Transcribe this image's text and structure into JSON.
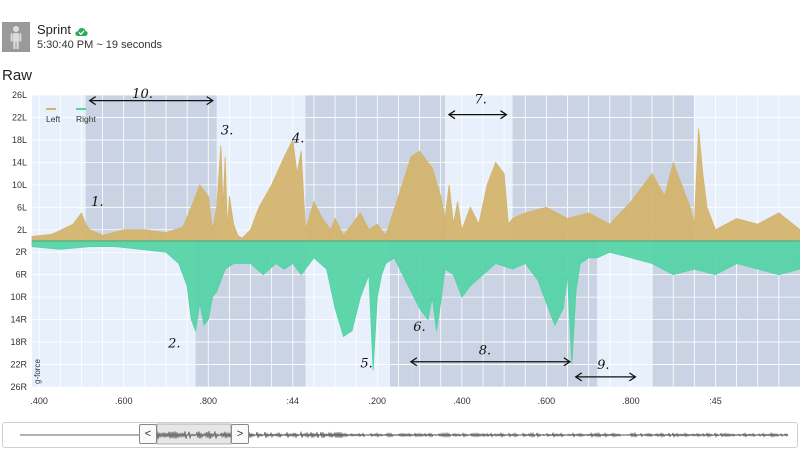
{
  "activity": {
    "title": "Sprint",
    "subtitle": "5:30:40 PM ~ 19 seconds",
    "status_icon": "cloud-check-icon",
    "status_color": "#2eaa5c",
    "avatar_icon": "person-icon"
  },
  "section_label": "Raw",
  "chart_data": {
    "type": "area",
    "title": "",
    "xlabel": "",
    "ylabel": "g-force",
    "legend": {
      "placement": "top-left",
      "entries": [
        "Left",
        "Right"
      ]
    },
    "y_tick_labels": [
      "26L",
      "22L",
      "18L",
      "14L",
      "10L",
      "6L",
      "2L",
      "2R",
      "6R",
      "10R",
      "14R",
      "18R",
      "22R",
      "26R"
    ],
    "y_tick_values": [
      26,
      22,
      18,
      14,
      10,
      6,
      2,
      -2,
      -6,
      -10,
      -14,
      -18,
      -22,
      -26
    ],
    "ylim": [
      -26,
      26
    ],
    "x_tick_labels": [
      ".400",
      ".600",
      ".800",
      ":44",
      ".200",
      ".400",
      ".600",
      ".800",
      ":45"
    ],
    "x_tick_values": [
      0.4,
      0.6,
      0.8,
      1.0,
      1.2,
      1.4,
      1.6,
      1.8,
      2.0
    ],
    "xlim": [
      0.383,
      2.2
    ],
    "shaded_regions": [
      [
        0.51,
        0.82
      ],
      [
        1.03,
        1.36
      ],
      [
        1.52,
        1.95
      ]
    ],
    "shaded_regions_right": [
      [
        0.77,
        1.03
      ],
      [
        1.23,
        1.28
      ],
      [
        1.28,
        1.72
      ],
      [
        1.85,
        2.2
      ]
    ],
    "grid": true,
    "series": [
      {
        "name": "Left",
        "color": "#d4b36a",
        "x": [
          0.383,
          0.43,
          0.48,
          0.5,
          0.51,
          0.52,
          0.55,
          0.6,
          0.65,
          0.7,
          0.74,
          0.76,
          0.78,
          0.8,
          0.81,
          0.82,
          0.83,
          0.835,
          0.84,
          0.845,
          0.85,
          0.86,
          0.87,
          0.88,
          0.9,
          0.92,
          0.95,
          0.98,
          1.0,
          1.01,
          1.02,
          1.03,
          1.05,
          1.07,
          1.09,
          1.1,
          1.12,
          1.14,
          1.16,
          1.18,
          1.2,
          1.22,
          1.25,
          1.28,
          1.3,
          1.33,
          1.35,
          1.36,
          1.37,
          1.38,
          1.39,
          1.4,
          1.42,
          1.44,
          1.46,
          1.48,
          1.5,
          1.51,
          1.52,
          1.55,
          1.6,
          1.65,
          1.7,
          1.75,
          1.8,
          1.85,
          1.88,
          1.9,
          1.92,
          1.94,
          1.95,
          1.96,
          1.97,
          1.98,
          2.0,
          2.05,
          2.1,
          2.15,
          2.2
        ],
        "values": [
          0.8,
          1.2,
          3,
          5,
          3,
          2,
          1,
          2,
          2,
          1.5,
          2.5,
          6,
          10,
          8,
          2,
          6,
          17,
          6,
          15,
          2,
          8,
          3,
          1,
          0.5,
          2,
          6,
          10,
          15,
          18,
          12,
          16,
          2,
          7,
          4,
          2,
          4,
          1,
          3,
          5,
          2,
          3,
          1,
          8,
          15,
          16,
          13,
          8,
          4,
          10,
          3,
          7,
          2,
          6,
          3,
          10,
          14,
          12,
          3,
          4,
          5,
          6,
          4,
          5,
          3,
          7,
          12,
          8,
          14,
          10,
          6,
          3,
          20,
          12,
          6,
          2,
          4,
          3,
          5,
          2
        ],
        "area_baseline": 0
      },
      {
        "name": "Right",
        "color": "#52d2a5",
        "x": [
          0.383,
          0.45,
          0.52,
          0.58,
          0.64,
          0.7,
          0.73,
          0.75,
          0.76,
          0.77,
          0.78,
          0.79,
          0.8,
          0.81,
          0.82,
          0.84,
          0.86,
          0.88,
          0.9,
          0.93,
          0.96,
          0.98,
          1.0,
          1.02,
          1.05,
          1.08,
          1.1,
          1.12,
          1.14,
          1.16,
          1.18,
          1.19,
          1.2,
          1.21,
          1.22,
          1.24,
          1.26,
          1.28,
          1.3,
          1.32,
          1.33,
          1.34,
          1.35,
          1.36,
          1.38,
          1.4,
          1.42,
          1.45,
          1.48,
          1.52,
          1.55,
          1.58,
          1.6,
          1.62,
          1.64,
          1.65,
          1.66,
          1.67,
          1.68,
          1.7,
          1.72,
          1.75,
          1.8,
          1.85,
          1.9,
          1.95,
          2.0,
          2.05,
          2.1,
          2.15,
          2.2
        ],
        "values": [
          -1,
          -1.5,
          -1,
          -1,
          -1.5,
          -2,
          -4,
          -8,
          -14,
          -16,
          -11,
          -15,
          -14,
          -10,
          -9,
          -5,
          -4,
          -4,
          -4,
          -6,
          -4,
          -5,
          -4,
          -6,
          -3,
          -5,
          -12,
          -17,
          -16,
          -10,
          -6,
          -23,
          -10,
          -6,
          -4,
          -3,
          -6,
          -9,
          -12,
          -14,
          -10,
          -16,
          -11,
          -5,
          -6,
          -10,
          -8,
          -6,
          -4,
          -5,
          -4,
          -7,
          -11,
          -15,
          -12,
          -6,
          -22,
          -9,
          -4,
          -3,
          -3,
          -2,
          -3,
          -4,
          -6,
          -5,
          -6,
          -4,
          -5,
          -6,
          -5
        ],
        "area_baseline": 0
      }
    ],
    "annotations": [
      {
        "text": "1.",
        "x": 0.523,
        "y": 6.2
      },
      {
        "text": "2.",
        "x": 0.705,
        "y": -19
      },
      {
        "text": "3.",
        "x": 0.83,
        "y": 19
      },
      {
        "text": "4.",
        "x": 0.998,
        "y": 17.5
      },
      {
        "text": "5.",
        "x": 1.16,
        "y": -22.5
      },
      {
        "text": "6.",
        "x": 1.285,
        "y": -16
      },
      {
        "text": "7.",
        "x": 1.43,
        "y": 24.5
      },
      {
        "text": "8.",
        "x": 1.44,
        "y": -20.2,
        "range": [
          1.27,
          1.665
        ]
      },
      {
        "text": "9.",
        "x": 1.72,
        "y": -22.8,
        "range": [
          1.66,
          1.82
        ]
      },
      {
        "text": "10.",
        "x": 0.62,
        "y": 25.5,
        "range": [
          0.51,
          0.82
        ]
      },
      {
        "text": "7-range",
        "x": 1.36,
        "y": 22.5,
        "range": [
          1.36,
          1.515
        ]
      }
    ]
  },
  "scrubber": {
    "prev_label": "<",
    "next_label": ">",
    "prev_icon": "chevron-left-icon",
    "next_icon": "chevron-right-icon"
  }
}
